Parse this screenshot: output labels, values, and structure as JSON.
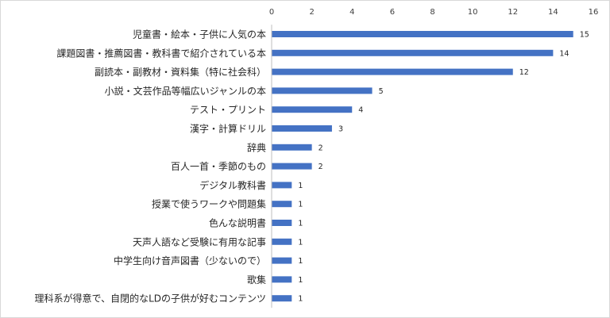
{
  "chart_data": {
    "type": "bar",
    "orientation": "horizontal",
    "categories": [
      "児童書・絵本・子供に人気の本",
      "課題図書・推薦図書・教科書で紹介されている本",
      "副読本・副教材・資料集（特に社会科）",
      "小説・文芸作品等幅広いジャンルの本",
      "テスト・プリント",
      "漢字・計算ドリル",
      "辞典",
      "百人一首・季節のもの",
      "デジタル教科書",
      "授業で使うワークや問題集",
      "色んな説明書",
      "天声人語など受験に有用な記事",
      "中学生向け音声図書（少ないので）",
      "歌集",
      "理科系が得意で、自閉的なLDの子供が好むコンテンツ"
    ],
    "values": [
      15,
      14,
      12,
      5,
      4,
      3,
      2,
      2,
      1,
      1,
      1,
      1,
      1,
      1,
      1
    ],
    "xlim": [
      0,
      16
    ],
    "xticks": [
      0,
      2,
      4,
      6,
      8,
      10,
      12,
      14,
      16
    ],
    "axis_position": "top",
    "grid": false,
    "data_labels": true,
    "bar_color": "#4472c4"
  }
}
